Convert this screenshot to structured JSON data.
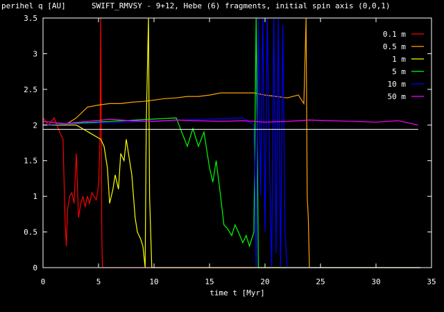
{
  "chart_data": {
    "type": "line",
    "title": "SWIFT_RMVSY - 9+12, Hebe (6) fragments, initial spin axis (0,0,1)",
    "ylabel": "perihel q [AU]",
    "xlabel": "time t [Myr]",
    "xlim": [
      0,
      35
    ],
    "ylim": [
      0,
      3.5
    ],
    "xticks": [
      0,
      5,
      10,
      15,
      20,
      25,
      30,
      35
    ],
    "yticks": [
      0,
      0.5,
      1,
      1.5,
      2,
      2.5,
      3,
      3.5
    ],
    "ytick_labels": [
      "0",
      "0.5",
      "1",
      "1.5",
      "2",
      "2.5",
      "3",
      "3.5"
    ],
    "grid": false,
    "legend_position": "top-right",
    "reference_line": {
      "y": 1.94,
      "color": "#ffffff"
    },
    "series": [
      {
        "name": "0.1 m",
        "color": "#ff0000",
        "x": [
          0.0,
          0.5,
          1.0,
          1.5,
          1.8,
          2.0,
          2.1,
          2.2,
          2.4,
          2.6,
          2.8,
          3.0,
          3.2,
          3.4,
          3.6,
          3.8,
          4.0,
          4.2,
          4.4,
          4.6,
          4.8,
          5.0,
          5.1,
          5.15,
          5.2,
          5.25,
          5.3,
          5.35,
          5.4,
          6.0,
          34.0
        ],
        "y": [
          2.1,
          2.0,
          2.1,
          1.9,
          1.8,
          0.6,
          0.3,
          0.8,
          1.0,
          1.05,
          0.9,
          1.6,
          0.7,
          0.9,
          1.0,
          0.85,
          1.0,
          0.9,
          1.05,
          1.0,
          0.95,
          1.15,
          1.6,
          2.0,
          3.5,
          2.0,
          0.4,
          0.02,
          0.0,
          0.0,
          0.0
        ]
      },
      {
        "name": "0.5 m",
        "color": "#ffa500",
        "x": [
          0.0,
          1.0,
          2.0,
          3.0,
          4.0,
          5.0,
          6.0,
          7.0,
          8.0,
          9.0,
          10.0,
          11.0,
          12.0,
          13.0,
          14.0,
          15.0,
          16.0,
          17.0,
          18.0,
          19.0,
          20.0,
          21.0,
          22.0,
          23.0,
          23.5,
          23.7,
          23.8,
          23.9,
          24.0,
          34.0
        ],
        "y": [
          2.0,
          2.0,
          2.0,
          2.1,
          2.25,
          2.28,
          2.3,
          2.3,
          2.32,
          2.33,
          2.35,
          2.37,
          2.38,
          2.4,
          2.4,
          2.42,
          2.45,
          2.45,
          2.45,
          2.45,
          2.42,
          2.4,
          2.38,
          2.42,
          2.3,
          3.5,
          1.0,
          0.7,
          0.0,
          0.0
        ]
      },
      {
        "name": "1 m",
        "color": "#ffff00",
        "x": [
          0.0,
          3.0,
          5.2,
          5.5,
          5.8,
          6.0,
          6.3,
          6.5,
          6.8,
          7.0,
          7.3,
          7.5,
          7.8,
          8.0,
          8.3,
          8.5,
          8.8,
          9.0,
          9.2,
          9.3,
          9.5,
          9.6,
          9.8,
          10.0,
          34.0
        ],
        "y": [
          2.0,
          2.0,
          1.8,
          1.7,
          1.4,
          0.9,
          1.1,
          1.3,
          1.1,
          1.6,
          1.5,
          1.8,
          1.5,
          1.3,
          0.7,
          0.5,
          0.4,
          0.3,
          0.0,
          2.0,
          3.5,
          1.0,
          0.0,
          0.0,
          0.0
        ]
      },
      {
        "name": "5 m",
        "color": "#00ff00",
        "x": [
          0.0,
          12.0,
          12.5,
          13.0,
          13.5,
          14.0,
          14.5,
          15.0,
          15.3,
          15.6,
          16.0,
          16.3,
          16.6,
          17.0,
          17.3,
          17.6,
          18.0,
          18.3,
          18.6,
          19.0,
          19.2,
          19.3,
          19.4,
          19.6,
          34.0
        ],
        "y": [
          2.0,
          2.1,
          1.9,
          1.7,
          1.95,
          1.7,
          1.9,
          1.4,
          1.2,
          1.5,
          1.0,
          0.6,
          0.55,
          0.45,
          0.6,
          0.5,
          0.35,
          0.45,
          0.3,
          0.5,
          3.5,
          2.0,
          0.0,
          0.0,
          0.0
        ]
      },
      {
        "name": "10 m",
        "color": "#0000ff",
        "x": [
          0.0,
          18.0,
          19.0,
          19.2,
          19.4,
          19.6,
          19.8,
          20.0,
          20.2,
          20.4,
          20.6,
          20.8,
          21.0,
          21.2,
          21.4,
          21.6,
          21.8,
          22.0,
          22.3,
          34.0
        ],
        "y": [
          2.0,
          2.1,
          2.0,
          0.0,
          3.5,
          1.0,
          3.5,
          0.5,
          3.5,
          1.5,
          0.0,
          3.5,
          0.2,
          3.5,
          0.0,
          3.4,
          0.5,
          0.0,
          0.0,
          0.0
        ]
      },
      {
        "name": "50 m",
        "color": "#ff00ff",
        "x": [
          0.0,
          2.0,
          4.0,
          6.0,
          8.0,
          10.0,
          12.0,
          14.0,
          16.0,
          18.0,
          20.0,
          22.0,
          24.0,
          26.0,
          28.0,
          30.0,
          32.0,
          33.8
        ],
        "y": [
          2.05,
          2.02,
          2.05,
          2.08,
          2.06,
          2.05,
          2.07,
          2.06,
          2.05,
          2.06,
          2.04,
          2.05,
          2.07,
          2.06,
          2.05,
          2.04,
          2.06,
          2.0
        ]
      }
    ]
  }
}
